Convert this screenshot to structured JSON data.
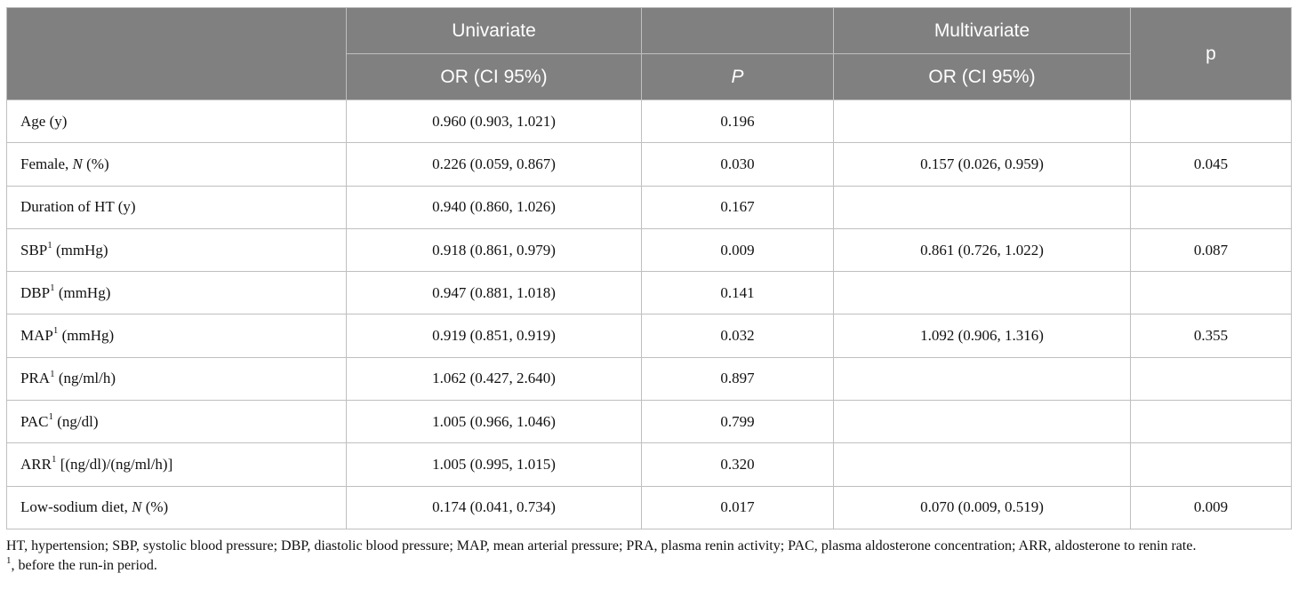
{
  "header": {
    "univariate": "Univariate",
    "multivariate": "Multivariate",
    "p_col": "p",
    "or_ci_uni": "OR (CI 95%)",
    "p_uni": "P",
    "or_ci_multi": "OR (CI 95%)"
  },
  "rows": [
    {
      "pre": "Age (y)",
      "sup": "",
      "post": "",
      "italic": "",
      "tail": "",
      "uni_or": "0.960 (0.903, 1.021)",
      "uni_p": "0.196",
      "multi_or": "",
      "multi_p": ""
    },
    {
      "pre": "Female, ",
      "sup": "",
      "post": "",
      "italic": "N",
      "tail": " (%)",
      "uni_or": "0.226 (0.059, 0.867)",
      "uni_p": "0.030",
      "multi_or": "0.157 (0.026, 0.959)",
      "multi_p": "0.045"
    },
    {
      "pre": "Duration of HT (y)",
      "sup": "",
      "post": "",
      "italic": "",
      "tail": "",
      "uni_or": "0.940 (0.860, 1.026)",
      "uni_p": "0.167",
      "multi_or": "",
      "multi_p": ""
    },
    {
      "pre": "SBP",
      "sup": "1",
      "post": " (mmHg)",
      "italic": "",
      "tail": "",
      "uni_or": "0.918 (0.861, 0.979)",
      "uni_p": "0.009",
      "multi_or": "0.861 (0.726, 1.022)",
      "multi_p": "0.087"
    },
    {
      "pre": "DBP",
      "sup": "1",
      "post": " (mmHg)",
      "italic": "",
      "tail": "",
      "uni_or": "0.947 (0.881, 1.018)",
      "uni_p": "0.141",
      "multi_or": "",
      "multi_p": ""
    },
    {
      "pre": "MAP",
      "sup": "1",
      "post": " (mmHg)",
      "italic": "",
      "tail": "",
      "uni_or": "0.919 (0.851, 0.919)",
      "uni_p": "0.032",
      "multi_or": "1.092 (0.906, 1.316)",
      "multi_p": "0.355"
    },
    {
      "pre": "PRA",
      "sup": "1",
      "post": " (ng/ml/h)",
      "italic": "",
      "tail": "",
      "uni_or": "1.062 (0.427, 2.640)",
      "uni_p": "0.897",
      "multi_or": "",
      "multi_p": ""
    },
    {
      "pre": "PAC",
      "sup": "1",
      "post": " (ng/dl)",
      "italic": "",
      "tail": "",
      "uni_or": "1.005 (0.966, 1.046)",
      "uni_p": "0.799",
      "multi_or": "",
      "multi_p": ""
    },
    {
      "pre": "ARR",
      "sup": "1",
      "post": " [(ng/dl)/(ng/ml/h)]",
      "italic": "",
      "tail": "",
      "uni_or": "1.005 (0.995, 1.015)",
      "uni_p": "0.320",
      "multi_or": "",
      "multi_p": ""
    },
    {
      "pre": "Low-sodium diet, ",
      "sup": "",
      "post": "",
      "italic": "N",
      "tail": " (%)",
      "uni_or": "0.174 (0.041, 0.734)",
      "uni_p": "0.017",
      "multi_or": "0.070 (0.009, 0.519)",
      "multi_p": "0.009"
    }
  ],
  "footnotes": {
    "abbreviations": "HT, hypertension; SBP, systolic blood pressure; DBP, diastolic blood pressure; MAP, mean arterial pressure; PRA, plasma renin activity; PAC, plasma aldosterone concentration; ARR, aldosterone to renin rate.",
    "note_marker": "1",
    "note_text": ", before the run-in period."
  }
}
